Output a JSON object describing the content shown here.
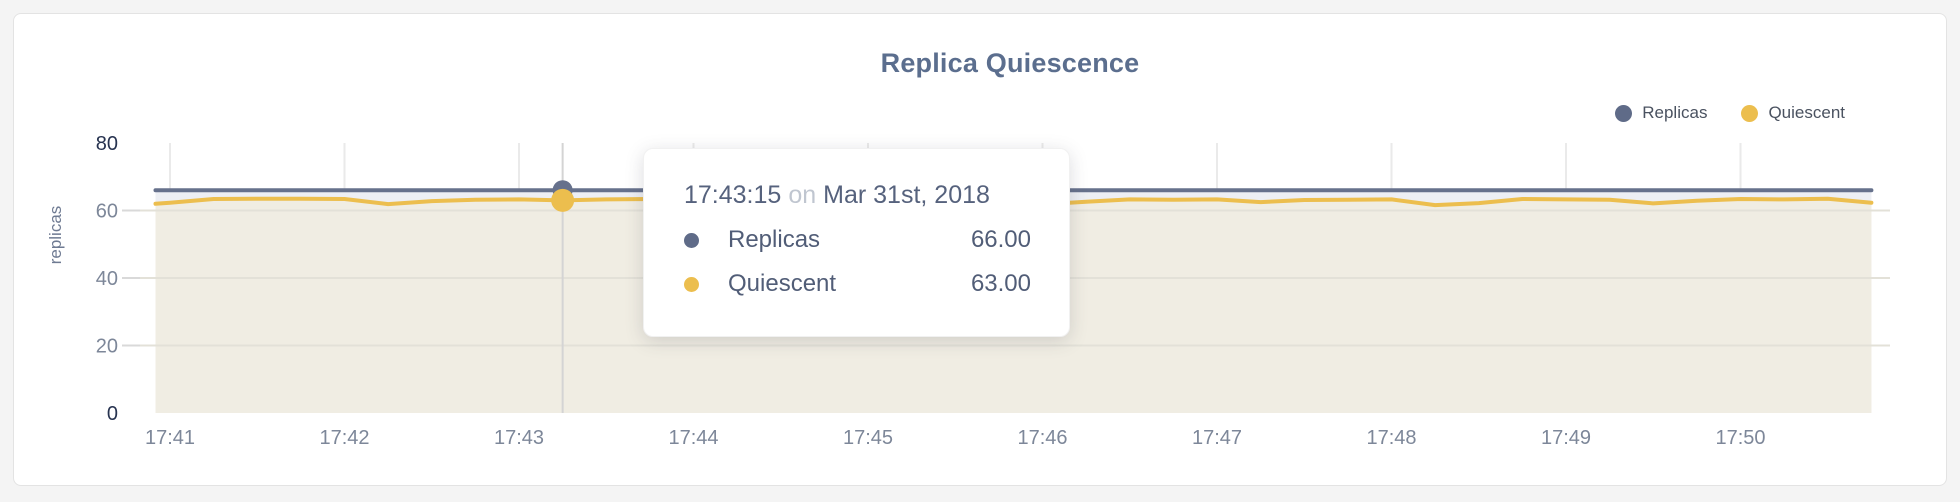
{
  "page": {
    "background_color": "#f4f4f4",
    "card_border_color": "#e3e3e3"
  },
  "chart": {
    "title": "Replica Quiescence",
    "y_axis_title": "replicas",
    "legend": [
      {
        "label": "Replicas",
        "color": "#5f6b88"
      },
      {
        "label": "Quiescent",
        "color": "#ecbe4e"
      }
    ]
  },
  "tooltip": {
    "time": "17:43:15",
    "connector": "on",
    "date": "Mar 31st, 2018",
    "rows": [
      {
        "label": "Replicas",
        "value": "66.00",
        "color": "#5f6b88"
      },
      {
        "label": "Quiescent",
        "value": "63.00",
        "color": "#ecbe4e"
      }
    ]
  },
  "chart_data": {
    "type": "area",
    "title": "Replica Quiescence",
    "xlabel": "",
    "ylabel": "replicas",
    "ylim": [
      0,
      80
    ],
    "y_ticks": [
      0,
      20,
      40,
      60,
      80
    ],
    "x_ticks": [
      "17:41",
      "17:42",
      "17:43",
      "17:44",
      "17:45",
      "17:46",
      "17:47",
      "17:48",
      "17:49",
      "17:50"
    ],
    "grid": "vertical minute lines, horizontal lines at 20/40/60",
    "legend_position": "top-right",
    "x": [
      "17:40:55",
      "17:41:00",
      "17:41:15",
      "17:41:30",
      "17:41:45",
      "17:42:00",
      "17:42:15",
      "17:42:30",
      "17:42:45",
      "17:43:00",
      "17:43:15",
      "17:43:30",
      "17:43:45",
      "17:44:00",
      "17:44:15",
      "17:44:30",
      "17:44:45",
      "17:45:00",
      "17:45:15",
      "17:45:30",
      "17:45:45",
      "17:46:00",
      "17:46:15",
      "17:46:30",
      "17:46:45",
      "17:47:00",
      "17:47:15",
      "17:47:30",
      "17:47:45",
      "17:48:00",
      "17:48:15",
      "17:48:30",
      "17:48:45",
      "17:49:00",
      "17:49:15",
      "17:49:30",
      "17:49:45",
      "17:50:00",
      "17:50:15",
      "17:50:30",
      "17:50:45"
    ],
    "series": [
      {
        "name": "Replicas",
        "line_color": "#66718c",
        "fill_color": "#edeff4",
        "values": [
          66,
          66,
          66,
          66,
          66,
          66,
          66,
          66,
          66,
          66,
          66,
          66,
          66,
          66,
          66,
          66,
          66,
          66,
          66,
          66,
          66,
          66,
          66,
          66,
          66,
          66,
          66,
          66,
          66,
          66,
          66,
          66,
          66,
          66,
          66,
          66,
          66,
          66,
          66,
          66,
          66
        ]
      },
      {
        "name": "Quiescent",
        "line_color": "#ecbe4e",
        "fill_color": "#f0ede3",
        "values": [
          62.0,
          62.3,
          63.4,
          63.5,
          63.5,
          63.4,
          61.9,
          62.8,
          63.2,
          63.3,
          63.0,
          63.3,
          63.4,
          63.2,
          63.4,
          62.4,
          63.1,
          63.3,
          63.3,
          63.2,
          63.4,
          61.8,
          62.6,
          63.3,
          63.2,
          63.3,
          62.5,
          63.1,
          63.2,
          63.3,
          61.6,
          62.2,
          63.4,
          63.3,
          63.2,
          62.1,
          62.9,
          63.4,
          63.3,
          63.5,
          62.3
        ]
      }
    ],
    "hover": {
      "x": "17:43:15",
      "Replicas": 66.0,
      "Quiescent": 63.0
    },
    "axis_colors": {
      "tick_label": "#7d8799",
      "extreme_tick_label": "#273350",
      "grid_line": "#eaeaea",
      "crosshair": "#d4d4d4"
    }
  }
}
